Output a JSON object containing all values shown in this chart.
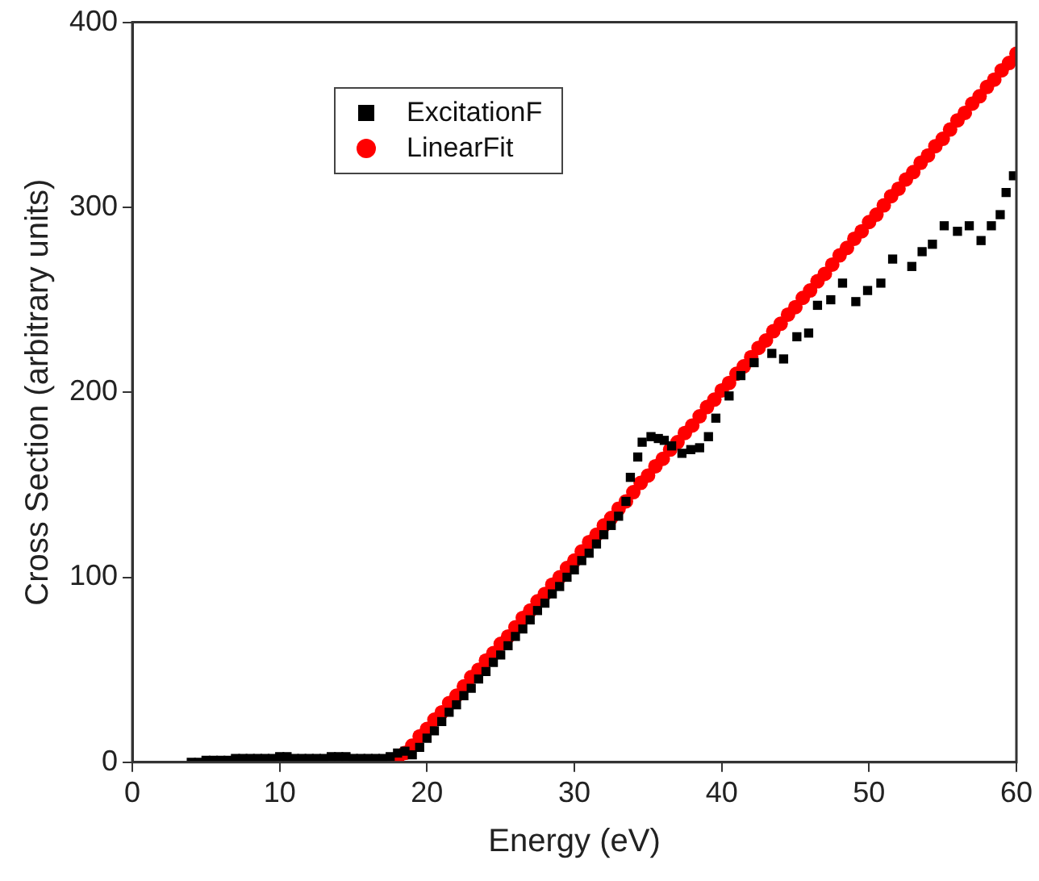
{
  "chart_data": {
    "type": "scatter",
    "xlabel": "Energy (eV)",
    "ylabel": "Cross Section (arbitrary units)",
    "xlim": [
      0,
      60
    ],
    "xticks": [
      0,
      10,
      20,
      30,
      40,
      50,
      60
    ],
    "ylim": [
      0,
      400
    ],
    "yticks": [
      0,
      100,
      200,
      300,
      400
    ],
    "grid": false,
    "legend": "top left",
    "series": [
      {
        "name": "ExcitationF",
        "color": "#000000",
        "marker": "square",
        "x": [
          4,
          4.5,
          5,
          5.5,
          6,
          6.5,
          7,
          7.5,
          8,
          8.5,
          9,
          9.5,
          10,
          10.5,
          11,
          11.5,
          12,
          12.5,
          13,
          13.5,
          14,
          14.5,
          15,
          15.5,
          16,
          16.5,
          17,
          17.5,
          18,
          18.5,
          19,
          19.5,
          20,
          20.5,
          21,
          21.5,
          22,
          22.5,
          23,
          23.5,
          24,
          24.5,
          25,
          25.5,
          26,
          26.5,
          27,
          27.5,
          28,
          28.5,
          29,
          29.5,
          30,
          30.5,
          31,
          31.5,
          32,
          32.5,
          33,
          33.5,
          33.8,
          34.3,
          34.6,
          35.2,
          35.7,
          36.1,
          36.6,
          37.3,
          37.9,
          38.5,
          39.1,
          39.6,
          40.5,
          41.3,
          42.2,
          43.4,
          44.2,
          45.1,
          45.9,
          46.5,
          47.4,
          48.2,
          49.1,
          49.9,
          50.8,
          51.6,
          52.9,
          53.6,
          54.3,
          55.1,
          56,
          56.8,
          57.6,
          58.3,
          58.9,
          59.3,
          59.8
        ],
        "values": [
          0,
          0,
          1,
          1,
          1,
          1,
          2,
          2,
          2,
          2,
          2,
          2,
          3,
          3,
          2,
          2,
          2,
          2,
          2,
          3,
          3,
          3,
          2,
          2,
          2,
          2,
          2,
          3,
          5,
          6,
          4,
          8,
          13,
          17,
          22,
          27,
          31,
          36,
          40,
          45,
          49,
          54,
          58,
          63,
          68,
          72,
          77,
          82,
          86,
          91,
          95,
          100,
          104,
          109,
          113,
          118,
          123,
          128,
          133,
          141,
          154,
          165,
          173,
          176,
          175,
          174,
          171,
          167,
          169,
          170,
          176,
          186,
          198,
          209,
          216,
          221,
          218,
          230,
          232,
          247,
          250,
          259,
          249,
          255,
          259,
          272,
          268,
          276,
          280,
          290,
          287,
          290,
          282,
          290,
          296,
          308,
          317
        ]
      },
      {
        "name": "LinearFit",
        "color": "#ff0000",
        "marker": "circle",
        "x": [
          18,
          18.5,
          19,
          19.5,
          20,
          20.5,
          21,
          21.5,
          22,
          22.5,
          23,
          23.5,
          24,
          24.5,
          25,
          25.5,
          26,
          26.5,
          27,
          27.5,
          28,
          28.5,
          29,
          29.5,
          30,
          30.5,
          31,
          31.5,
          32,
          32.5,
          33,
          33.5,
          34,
          34.5,
          35,
          35.5,
          36,
          36.5,
          37,
          37.5,
          38,
          38.5,
          39,
          39.5,
          40,
          40.5,
          41,
          41.5,
          42,
          42.5,
          43,
          43.5,
          44,
          44.5,
          45,
          45.5,
          46,
          46.5,
          47,
          47.5,
          48,
          48.5,
          49,
          49.5,
          50,
          50.5,
          51,
          51.5,
          52,
          52.5,
          53,
          53.5,
          54,
          54.5,
          55,
          55.5,
          56,
          56.5,
          57,
          57.5,
          58,
          58.5,
          59,
          59.5,
          60
        ],
        "values": [
          0,
          5,
          9,
          14,
          18,
          23,
          27,
          32,
          36,
          41,
          46,
          50,
          55,
          59,
          64,
          68,
          73,
          78,
          82,
          87,
          91,
          96,
          100,
          105,
          109,
          114,
          119,
          123,
          128,
          132,
          137,
          141,
          146,
          151,
          155,
          160,
          164,
          169,
          173,
          178,
          182,
          187,
          192,
          196,
          201,
          205,
          210,
          214,
          219,
          224,
          228,
          233,
          237,
          242,
          246,
          251,
          255,
          260,
          264,
          269,
          274,
          278,
          283,
          287,
          292,
          296,
          301,
          306,
          310,
          315,
          319,
          324,
          328,
          333,
          337,
          342,
          347,
          351,
          356,
          360,
          365,
          369,
          374,
          378,
          383
        ]
      }
    ]
  }
}
